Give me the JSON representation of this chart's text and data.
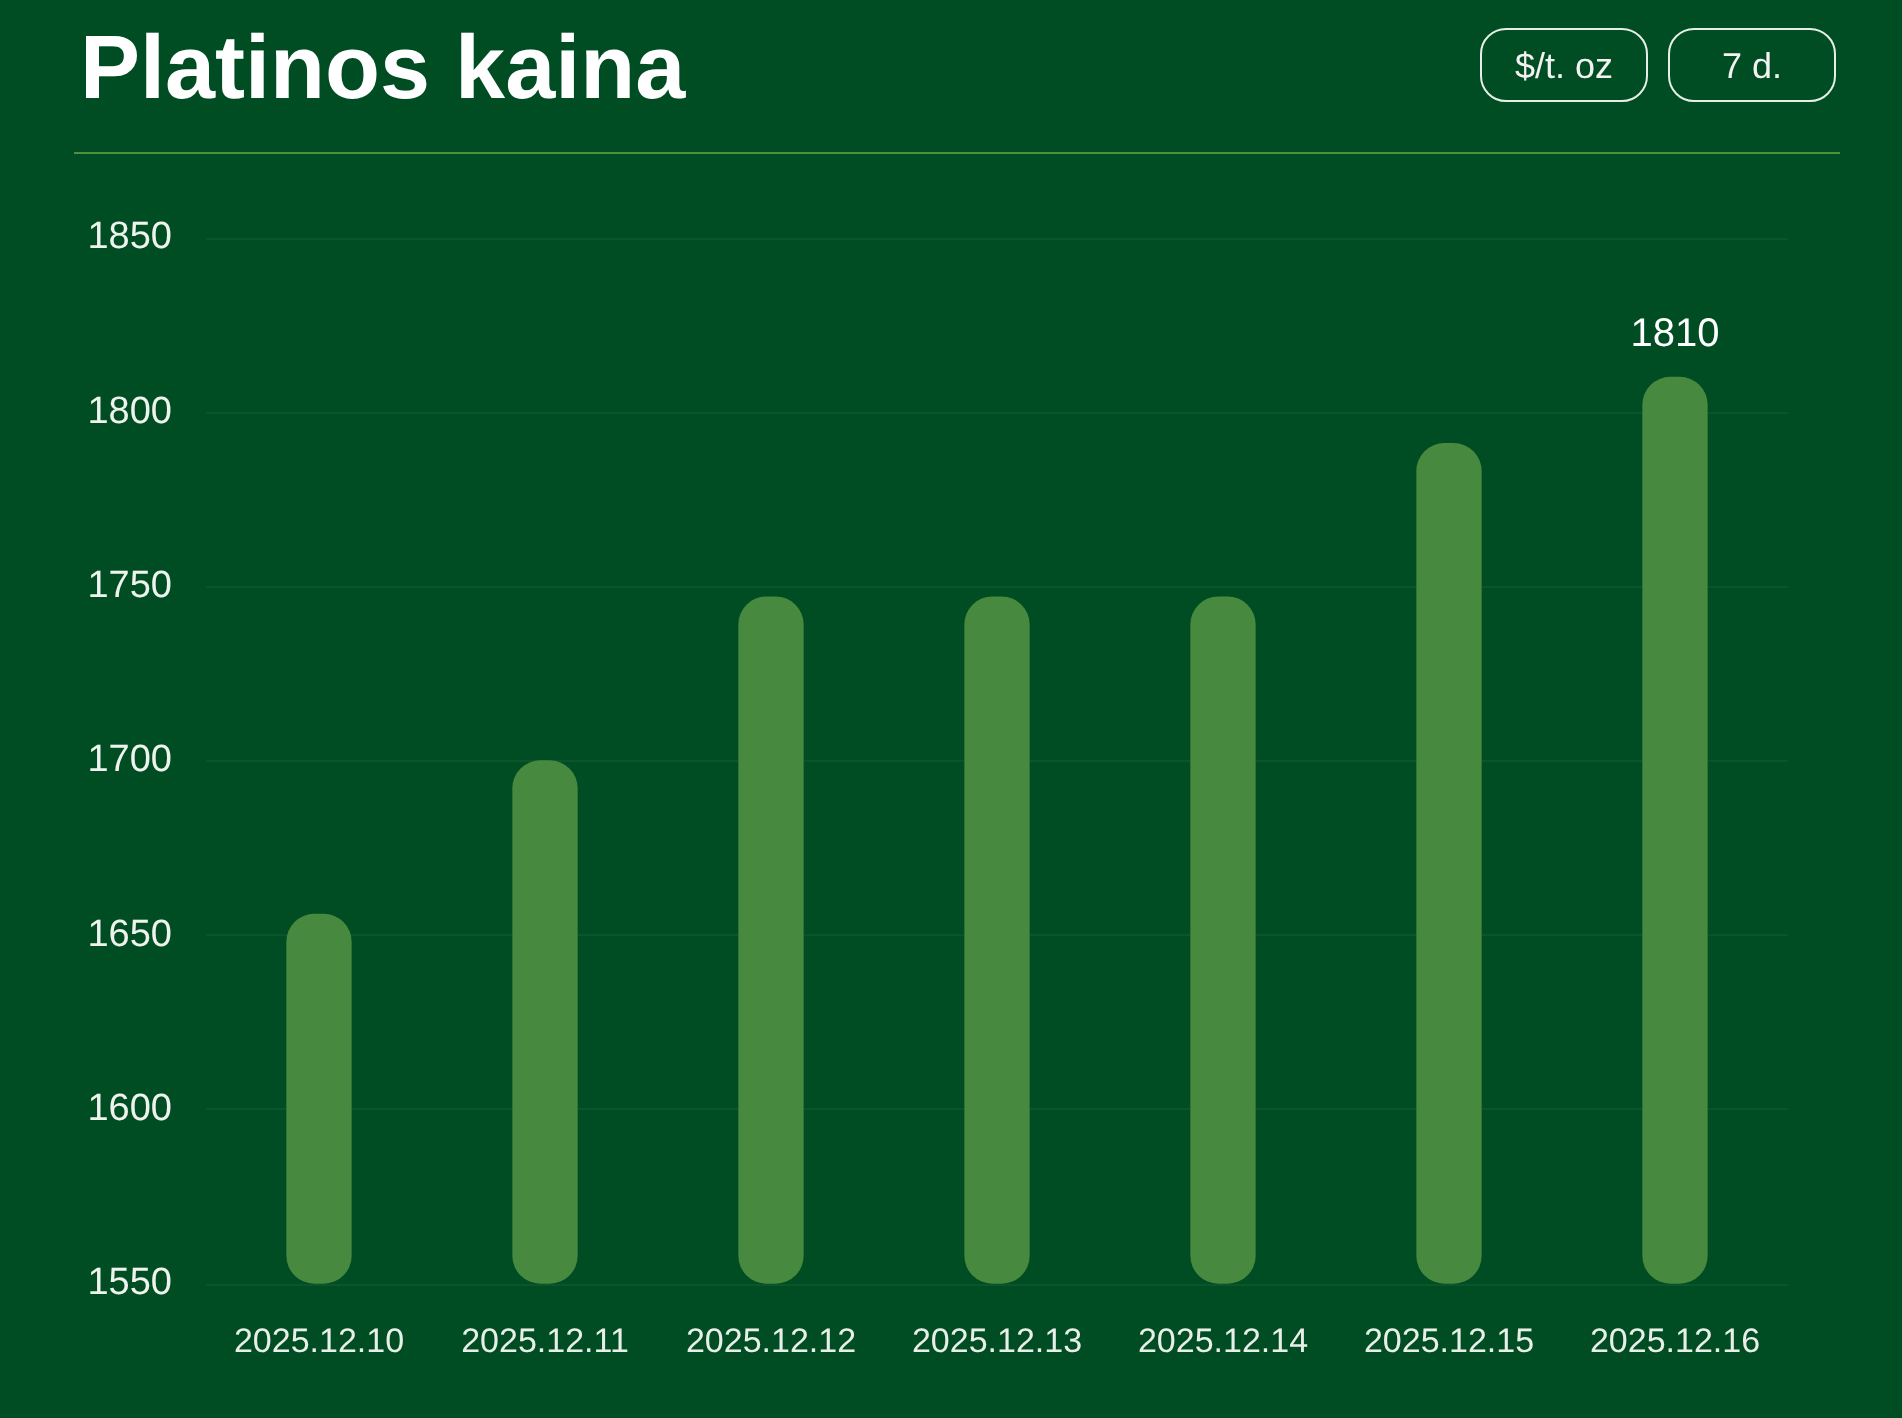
{
  "chart_data": {
    "type": "bar",
    "title": "Platinos kaina",
    "categories": [
      "2025.12.10",
      "2025.12.11",
      "2025.12.12",
      "2025.12.13",
      "2025.12.14",
      "2025.12.15",
      "2025.12.16"
    ],
    "values": [
      1656,
      1700,
      1747,
      1747,
      1747,
      1791,
      1810
    ],
    "color": "#46893f",
    "ylim": [
      1550,
      1850
    ],
    "yticks": [
      1550,
      1600,
      1650,
      1700,
      1750,
      1800,
      1850
    ],
    "grid": "y",
    "value_labels": [
      null,
      null,
      null,
      null,
      null,
      null,
      "1810"
    ],
    "annotations": [
      "$/t. oz",
      "7 d."
    ]
  }
}
